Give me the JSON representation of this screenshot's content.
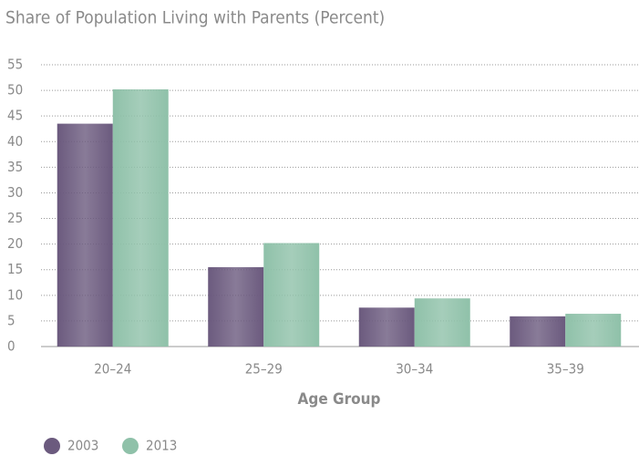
{
  "chart_data": {
    "type": "bar",
    "title": "Share of Population Living with Parents (Percent)",
    "x_label": "Age Group",
    "categories": [
      "20–24",
      "25–29",
      "30–34",
      "35–39"
    ],
    "series": [
      {
        "name": "2003",
        "color": "#6b5a7e",
        "values": [
          43.5,
          15.5,
          7.6,
          5.9
        ]
      },
      {
        "name": "2013",
        "color": "#8fc1a9",
        "values": [
          50.2,
          20.2,
          9.4,
          6.4
        ]
      }
    ],
    "ylim": [
      0,
      55
    ],
    "yticks": [
      0,
      5,
      10,
      15,
      20,
      25,
      30,
      35,
      40,
      45,
      50,
      55
    ],
    "grid": true,
    "legend": "bottom-left"
  }
}
